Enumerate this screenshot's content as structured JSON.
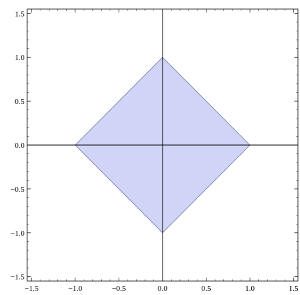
{
  "chart_data": {
    "type": "area",
    "title": "",
    "xlabel": "",
    "ylabel": "",
    "xlim": [
      -1.55,
      1.55
    ],
    "ylim": [
      -1.55,
      1.55
    ],
    "grid": false,
    "axes_through_origin": true,
    "frame": true,
    "x_ticks": [
      {
        "value": -1.5,
        "label": "−1.5"
      },
      {
        "value": -1.0,
        "label": "−1.0"
      },
      {
        "value": -0.5,
        "label": "−0.5"
      },
      {
        "value": 0.0,
        "label": "0.0"
      },
      {
        "value": 0.5,
        "label": "0.5"
      },
      {
        "value": 1.0,
        "label": "1.0"
      },
      {
        "value": 1.5,
        "label": "1.5"
      }
    ],
    "y_ticks": [
      {
        "value": 1.5,
        "label": "1.5"
      },
      {
        "value": 1.0,
        "label": "1.0"
      },
      {
        "value": 0.5,
        "label": "0.5"
      },
      {
        "value": 0.0,
        "label": "0.0"
      },
      {
        "value": -0.5,
        "label": "−0.5"
      },
      {
        "value": -1.0,
        "label": "−1.0"
      },
      {
        "value": -1.5,
        "label": "−1.5"
      }
    ],
    "series": [
      {
        "region": "|x| + |y| ≤ 1",
        "vertices": [
          [
            1,
            0
          ],
          [
            0,
            1
          ],
          [
            -1,
            0
          ],
          [
            0,
            -1
          ]
        ],
        "fill_color": "#d0d5f7",
        "edge_color": "#6b6f9c"
      }
    ],
    "colors": {
      "frame": "#000000",
      "axes": "#000000"
    }
  }
}
